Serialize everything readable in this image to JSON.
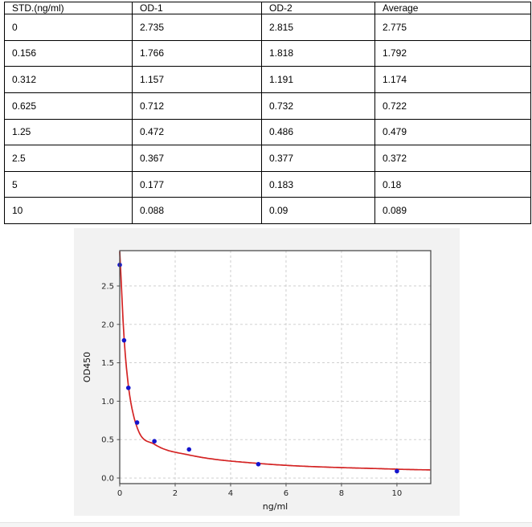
{
  "table": {
    "headers": [
      "STD.(ng/ml)",
      "OD-1",
      "OD-2",
      "Average"
    ],
    "rows": [
      [
        "0",
        "2.735",
        "2.815",
        "2.775"
      ],
      [
        "0.156",
        "1.766",
        "1.818",
        "1.792"
      ],
      [
        "0.312",
        "1.157",
        "1.191",
        "1.174"
      ],
      [
        "0.625",
        "0.712",
        "0.732",
        "0.722"
      ],
      [
        "1.25",
        "0.472",
        "0.486",
        "0.479"
      ],
      [
        "2.5",
        "0.367",
        "0.377",
        "0.372"
      ],
      [
        "5",
        "0.177",
        "0.183",
        "0.18"
      ],
      [
        "10",
        "0.088",
        "0.09",
        "0.089"
      ]
    ]
  },
  "chart_data": {
    "type": "scatter",
    "title": "",
    "xlabel": "ng/ml",
    "ylabel": "OD450",
    "x": [
      0,
      0.156,
      0.312,
      0.625,
      1.25,
      2.5,
      5,
      10
    ],
    "y": [
      2.775,
      1.792,
      1.174,
      0.722,
      0.479,
      0.372,
      0.18,
      0.089
    ],
    "series_name": "standard points (average OD)",
    "fit_curve": {
      "name": "4PL fit curve",
      "x": [
        0,
        0.156,
        0.312,
        0.625,
        1.25,
        2.5,
        5,
        10,
        11.22
      ],
      "y": [
        2.95,
        1.83,
        1.2,
        0.66,
        0.44,
        0.3,
        0.19,
        0.115,
        0.105
      ]
    },
    "xticks": [
      0,
      2,
      4,
      6,
      8,
      10
    ],
    "yticks": [
      0.0,
      0.5,
      1.0,
      1.5,
      2.0,
      2.5
    ],
    "xlim": [
      0,
      11.22
    ],
    "ylim": [
      -0.073,
      2.96
    ],
    "grid": true,
    "legend": "none",
    "colors": {
      "point": "#1414cd",
      "curve": "#d42424",
      "figure_bg": "#f2f2f2",
      "plot_bg": "#ffffff",
      "grid": "#c9c9c9",
      "spine": "#4d4d4d",
      "tick_text": "#262626"
    }
  }
}
